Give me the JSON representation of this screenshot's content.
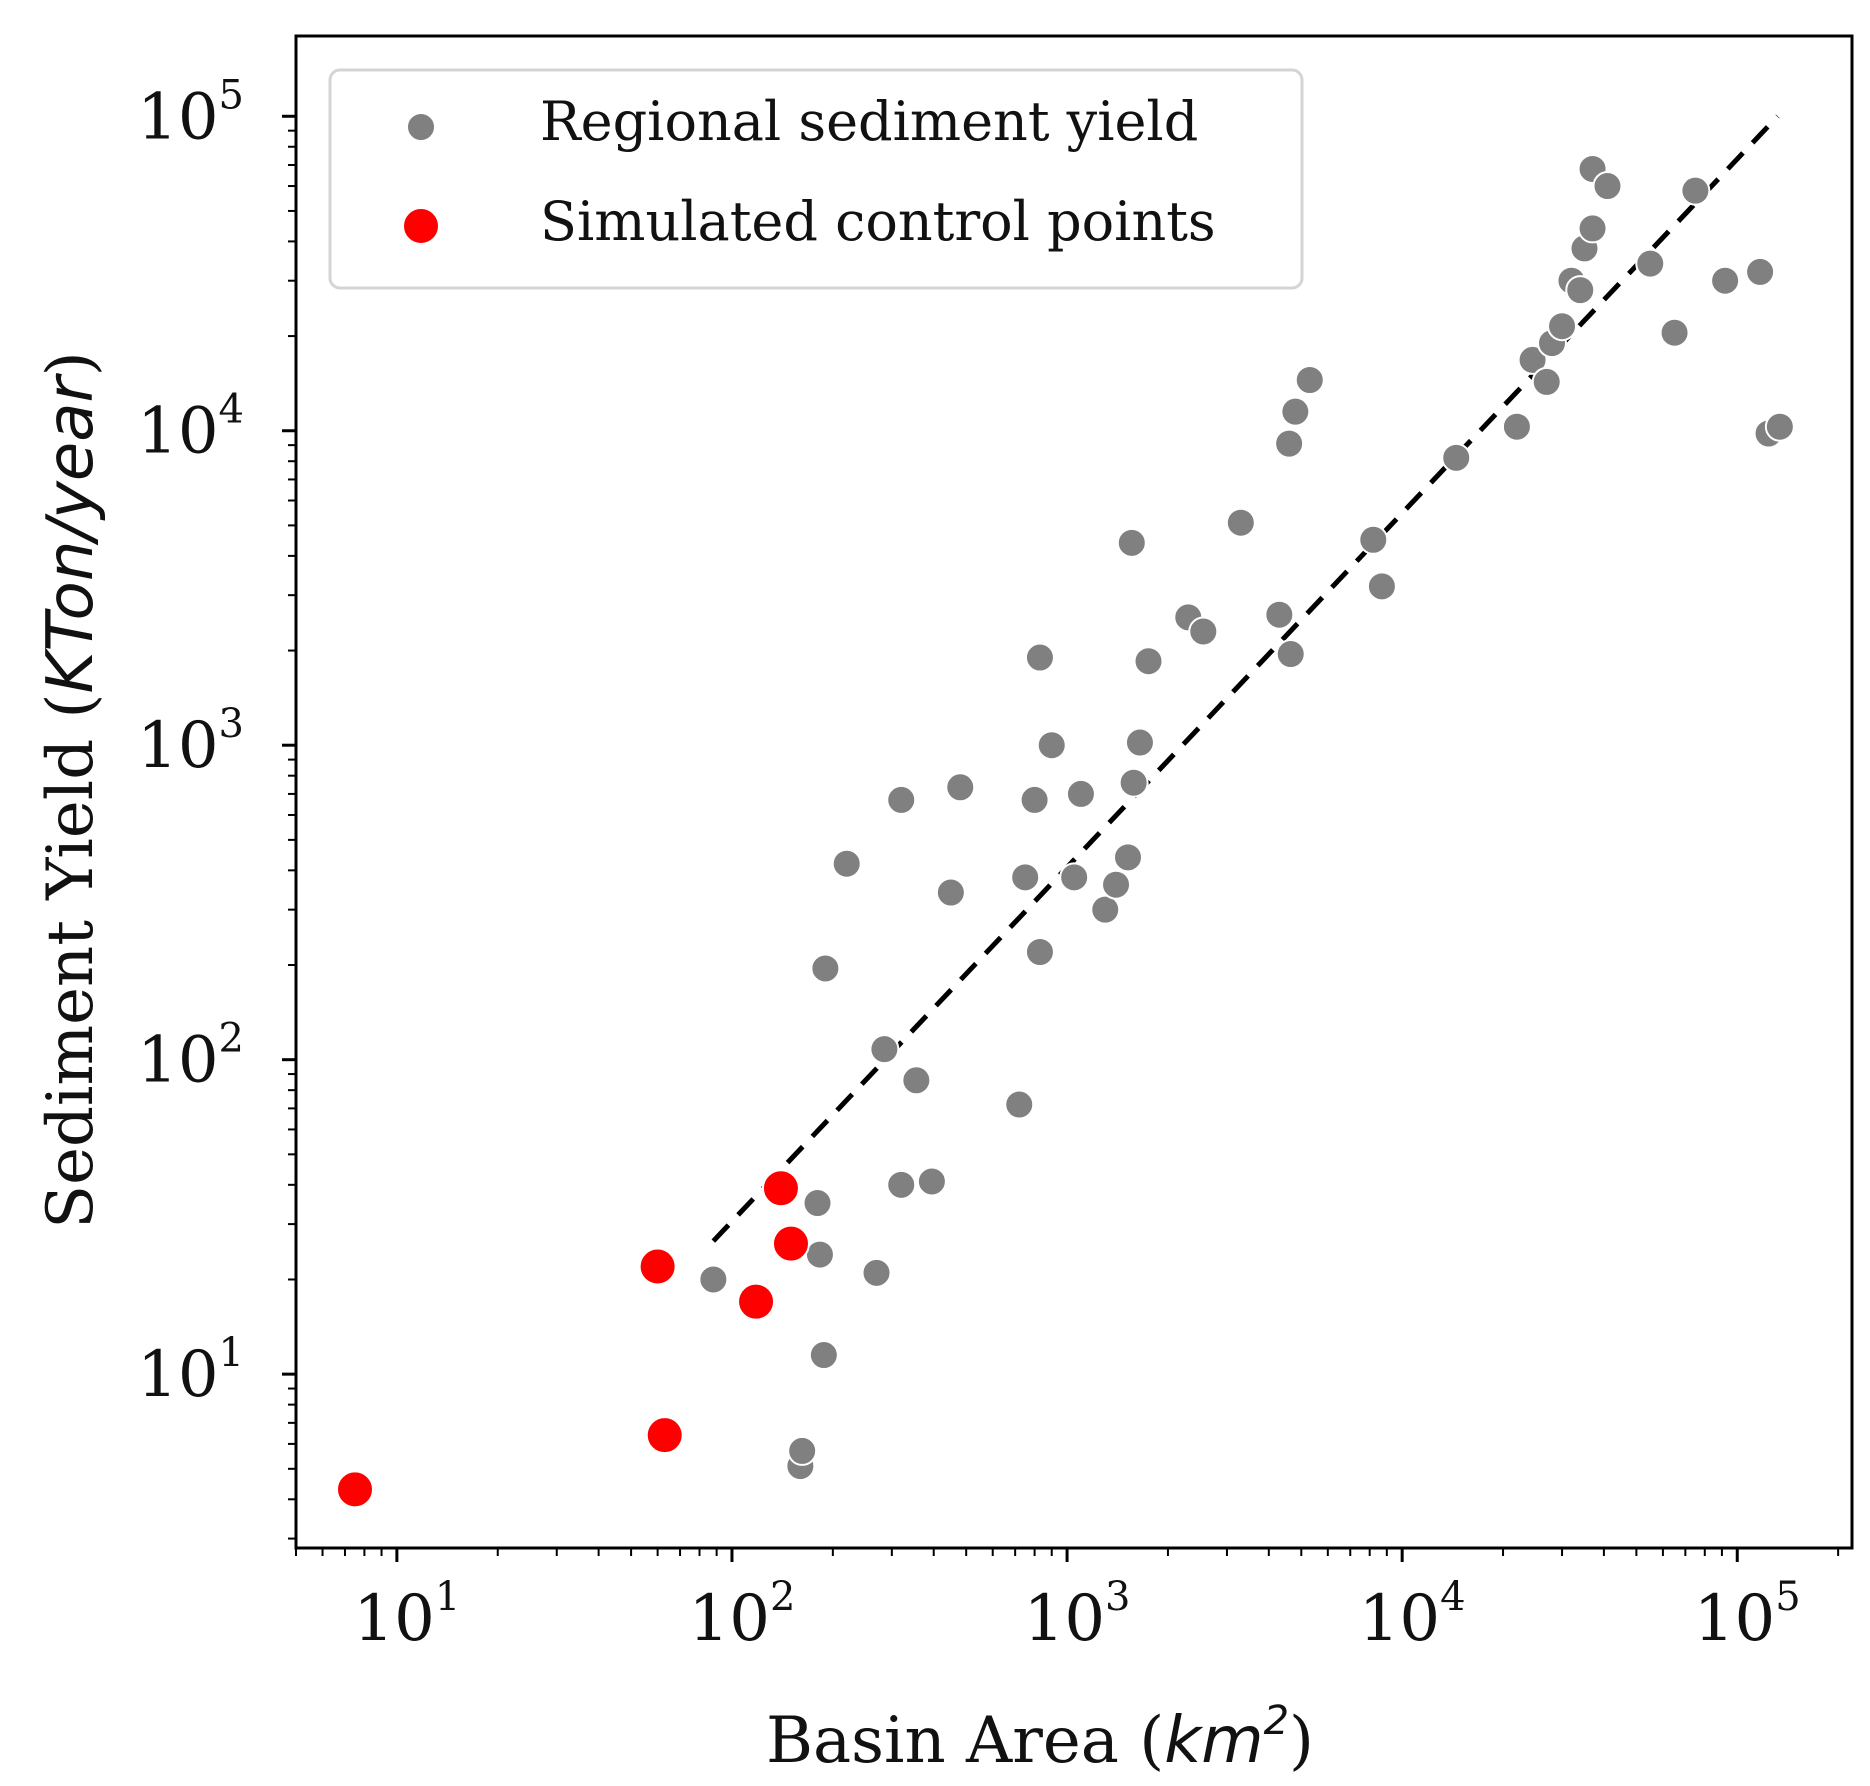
{
  "chart_data": {
    "type": "scatter",
    "xscale": "log",
    "yscale": "log",
    "xlim": [
      5,
      220000
    ],
    "ylim": [
      2.8,
      180000
    ],
    "xlabel": {
      "text": "Basin Area (",
      "unit": "km",
      "exp": "2",
      "close": ")"
    },
    "ylabel": {
      "text": "Sediment Yield (",
      "unit": "KTon/year",
      "close": ")"
    },
    "x_ticks": [
      {
        "base": "10",
        "exp": "1"
      },
      {
        "base": "10",
        "exp": "2"
      },
      {
        "base": "10",
        "exp": "3"
      },
      {
        "base": "10",
        "exp": "4"
      },
      {
        "base": "10",
        "exp": "5"
      }
    ],
    "y_ticks": [
      {
        "base": "10",
        "exp": "1"
      },
      {
        "base": "10",
        "exp": "2"
      },
      {
        "base": "10",
        "exp": "3"
      },
      {
        "base": "10",
        "exp": "4"
      },
      {
        "base": "10",
        "exp": "5"
      }
    ],
    "legend": {
      "position": "top-left"
    },
    "series": [
      {
        "name": "Regional sediment yield",
        "color": "#808080",
        "marker": "circle",
        "points": [
          [
            88,
            20
          ],
          [
            160,
            5.1
          ],
          [
            162,
            5.7
          ],
          [
            180,
            35
          ],
          [
            183,
            24
          ],
          [
            188,
            11.5
          ],
          [
            190,
            195
          ],
          [
            220,
            420
          ],
          [
            270,
            21
          ],
          [
            285,
            108
          ],
          [
            320,
            40
          ],
          [
            320,
            670
          ],
          [
            355,
            86
          ],
          [
            395,
            41
          ],
          [
            450,
            340
          ],
          [
            480,
            735
          ],
          [
            720,
            72
          ],
          [
            750,
            380
          ],
          [
            800,
            670
          ],
          [
            830,
            220
          ],
          [
            830,
            1900
          ],
          [
            900,
            1000
          ],
          [
            1050,
            380
          ],
          [
            1100,
            700
          ],
          [
            1300,
            300
          ],
          [
            1400,
            360
          ],
          [
            1520,
            440
          ],
          [
            1560,
            4400
          ],
          [
            1580,
            760
          ],
          [
            1650,
            1020
          ],
          [
            1750,
            1850
          ],
          [
            2300,
            2550
          ],
          [
            2550,
            2300
          ],
          [
            3300,
            5100
          ],
          [
            4300,
            2600
          ],
          [
            4600,
            9100
          ],
          [
            4800,
            11500
          ],
          [
            4650,
            1950
          ],
          [
            5300,
            14500
          ],
          [
            8200,
            4500
          ],
          [
            8700,
            3200
          ],
          [
            14500,
            8200
          ],
          [
            22000,
            10300
          ],
          [
            24500,
            16800
          ],
          [
            27000,
            14300
          ],
          [
            28000,
            19000
          ],
          [
            30000,
            21500
          ],
          [
            32000,
            30000
          ],
          [
            34000,
            28000
          ],
          [
            35000,
            38000
          ],
          [
            37000,
            44000
          ],
          [
            37000,
            68000
          ],
          [
            41000,
            60000
          ],
          [
            55000,
            34000
          ],
          [
            65000,
            20500
          ],
          [
            75000,
            58000
          ],
          [
            92000,
            30000
          ],
          [
            117000,
            32000
          ],
          [
            124000,
            9800
          ],
          [
            134000,
            10300
          ]
        ]
      },
      {
        "name": "Simulated control points",
        "color": "#ff0000",
        "marker": "circle",
        "points": [
          [
            7.5,
            4.3
          ],
          [
            60,
            22
          ],
          [
            63,
            6.4
          ],
          [
            118,
            17
          ],
          [
            140,
            39
          ],
          [
            150,
            26
          ]
        ]
      }
    ],
    "trendline": {
      "style": "dashed",
      "color": "#000000",
      "points": [
        [
          88,
          26.5
        ],
        [
          132000,
          100000
        ]
      ]
    }
  }
}
